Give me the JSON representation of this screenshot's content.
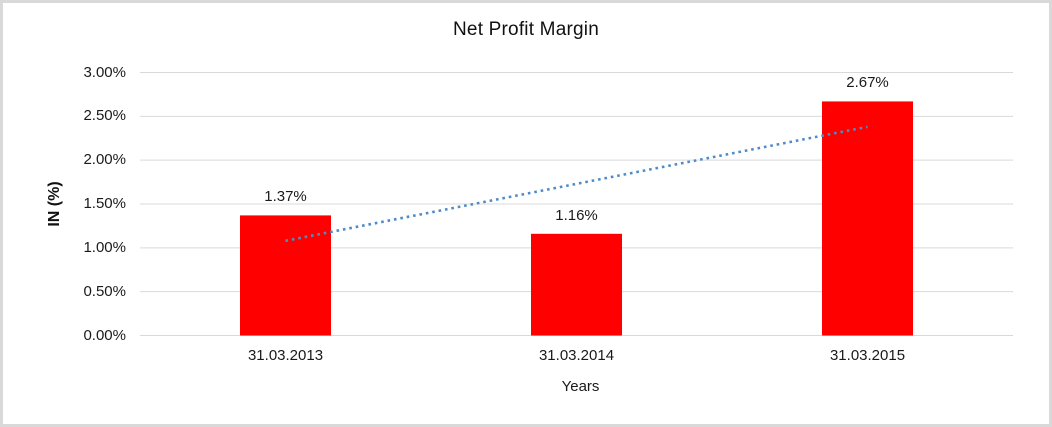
{
  "window": {
    "background_color": "#FFFFFF",
    "border_color": "#D9D9D9"
  },
  "chart_data": {
    "type": "bar",
    "title": "Net Profit Margin",
    "xlabel": "Years",
    "ylabel": "IN (%)",
    "categories": [
      "31.03.2013",
      "31.03.2014",
      "31.03.2015"
    ],
    "values": [
      1.37,
      1.16,
      2.67
    ],
    "data_labels": [
      "1.37%",
      "1.16%",
      "2.67%"
    ],
    "y_ticks": [
      "3.00%",
      "2.50%",
      "2.00%",
      "1.50%",
      "1.00%",
      "0.50%",
      "0.00%"
    ],
    "y_tick_values": [
      3.0,
      2.5,
      2.0,
      1.5,
      1.0,
      0.5,
      0.0
    ],
    "ylim": [
      0,
      3.0
    ],
    "grid": true,
    "legend": "none",
    "bar_color": "#FF0000",
    "gridline_color": "#D9D9D9",
    "text_color": "#1a1a1a",
    "trendline": {
      "type": "linear",
      "style": "dotted",
      "color": "#4E8BC8",
      "start_value": 1.08,
      "end_value": 2.38
    }
  }
}
